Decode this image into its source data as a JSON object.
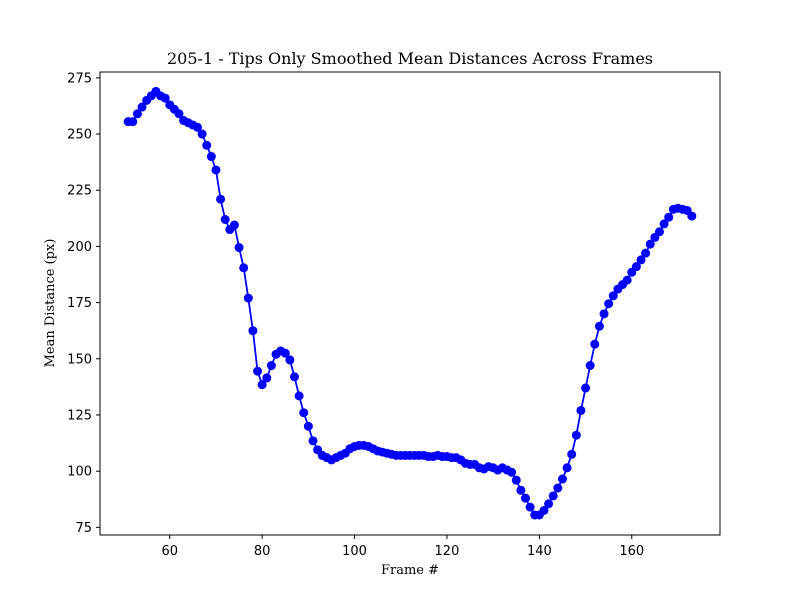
{
  "chart_data": {
    "type": "line",
    "title": "205-1 - Tips Only Smoothed Mean Distances Across Frames",
    "xlabel": "Frame #",
    "ylabel": "Mean Distance (px)",
    "xlim": [
      44.9,
      179.1
    ],
    "ylim": [
      71.6,
      277.6
    ],
    "xticks": [
      60,
      80,
      100,
      120,
      140,
      160
    ],
    "yticks": [
      75,
      100,
      125,
      150,
      175,
      200,
      225,
      250,
      275
    ],
    "grid": false,
    "legend": "none",
    "series": [
      {
        "color": "#0000ff",
        "marker": "circle",
        "x": [
          51,
          52,
          53,
          54,
          55,
          56,
          57,
          58,
          59,
          60,
          61,
          62,
          63,
          64,
          65,
          66,
          67,
          68,
          69,
          70,
          71,
          72,
          73,
          74,
          75,
          76,
          77,
          78,
          79,
          80,
          81,
          82,
          83,
          84,
          85,
          86,
          87,
          88,
          89,
          90,
          91,
          92,
          93,
          94,
          95,
          96,
          97,
          98,
          99,
          100,
          101,
          102,
          103,
          104,
          105,
          106,
          107,
          108,
          109,
          110,
          111,
          112,
          113,
          114,
          115,
          116,
          117,
          118,
          119,
          120,
          121,
          122,
          123,
          124,
          125,
          126,
          127,
          128,
          129,
          130,
          131,
          132,
          133,
          134,
          135,
          136,
          137,
          138,
          139,
          140,
          141,
          142,
          143,
          144,
          145,
          146,
          147,
          148,
          149,
          150,
          151,
          152,
          153,
          154,
          155,
          156,
          157,
          158,
          159,
          160,
          161,
          162,
          163,
          164,
          165,
          166,
          167,
          168,
          169,
          170,
          171,
          172,
          173
        ],
        "y": [
          255.5,
          255.5,
          259,
          262,
          265,
          267,
          269,
          267,
          266,
          263,
          261,
          259,
          256,
          255,
          254,
          253,
          250,
          245,
          240,
          234,
          221,
          212,
          207.5,
          209.5,
          199.5,
          190.5,
          177,
          162.5,
          144.5,
          138.5,
          141.5,
          147,
          152,
          153.5,
          152.5,
          149.5,
          142,
          133.5,
          126,
          120,
          113.5,
          109.5,
          107,
          106,
          105,
          106,
          107,
          108,
          110,
          111,
          111.5,
          111.5,
          111,
          110,
          109,
          108.5,
          108,
          107.5,
          107,
          107,
          107,
          107,
          107,
          107,
          107,
          106.5,
          106.5,
          107,
          106.5,
          106.5,
          106,
          106,
          105,
          103.5,
          103,
          103,
          101.5,
          101,
          102,
          101.5,
          100.5,
          101.5,
          100.5,
          99.5,
          96,
          91.5,
          88,
          84,
          80.5,
          80.5,
          82.5,
          85.5,
          89,
          92.5,
          96.5,
          101.5,
          107.5,
          116,
          127,
          137,
          147,
          156.5,
          164.5,
          170,
          174.5,
          178,
          181,
          183,
          185,
          188.5,
          191,
          194,
          197,
          201,
          204,
          206.5,
          210,
          213,
          216.5,
          217,
          216.5,
          216,
          213.5
        ]
      }
    ]
  }
}
